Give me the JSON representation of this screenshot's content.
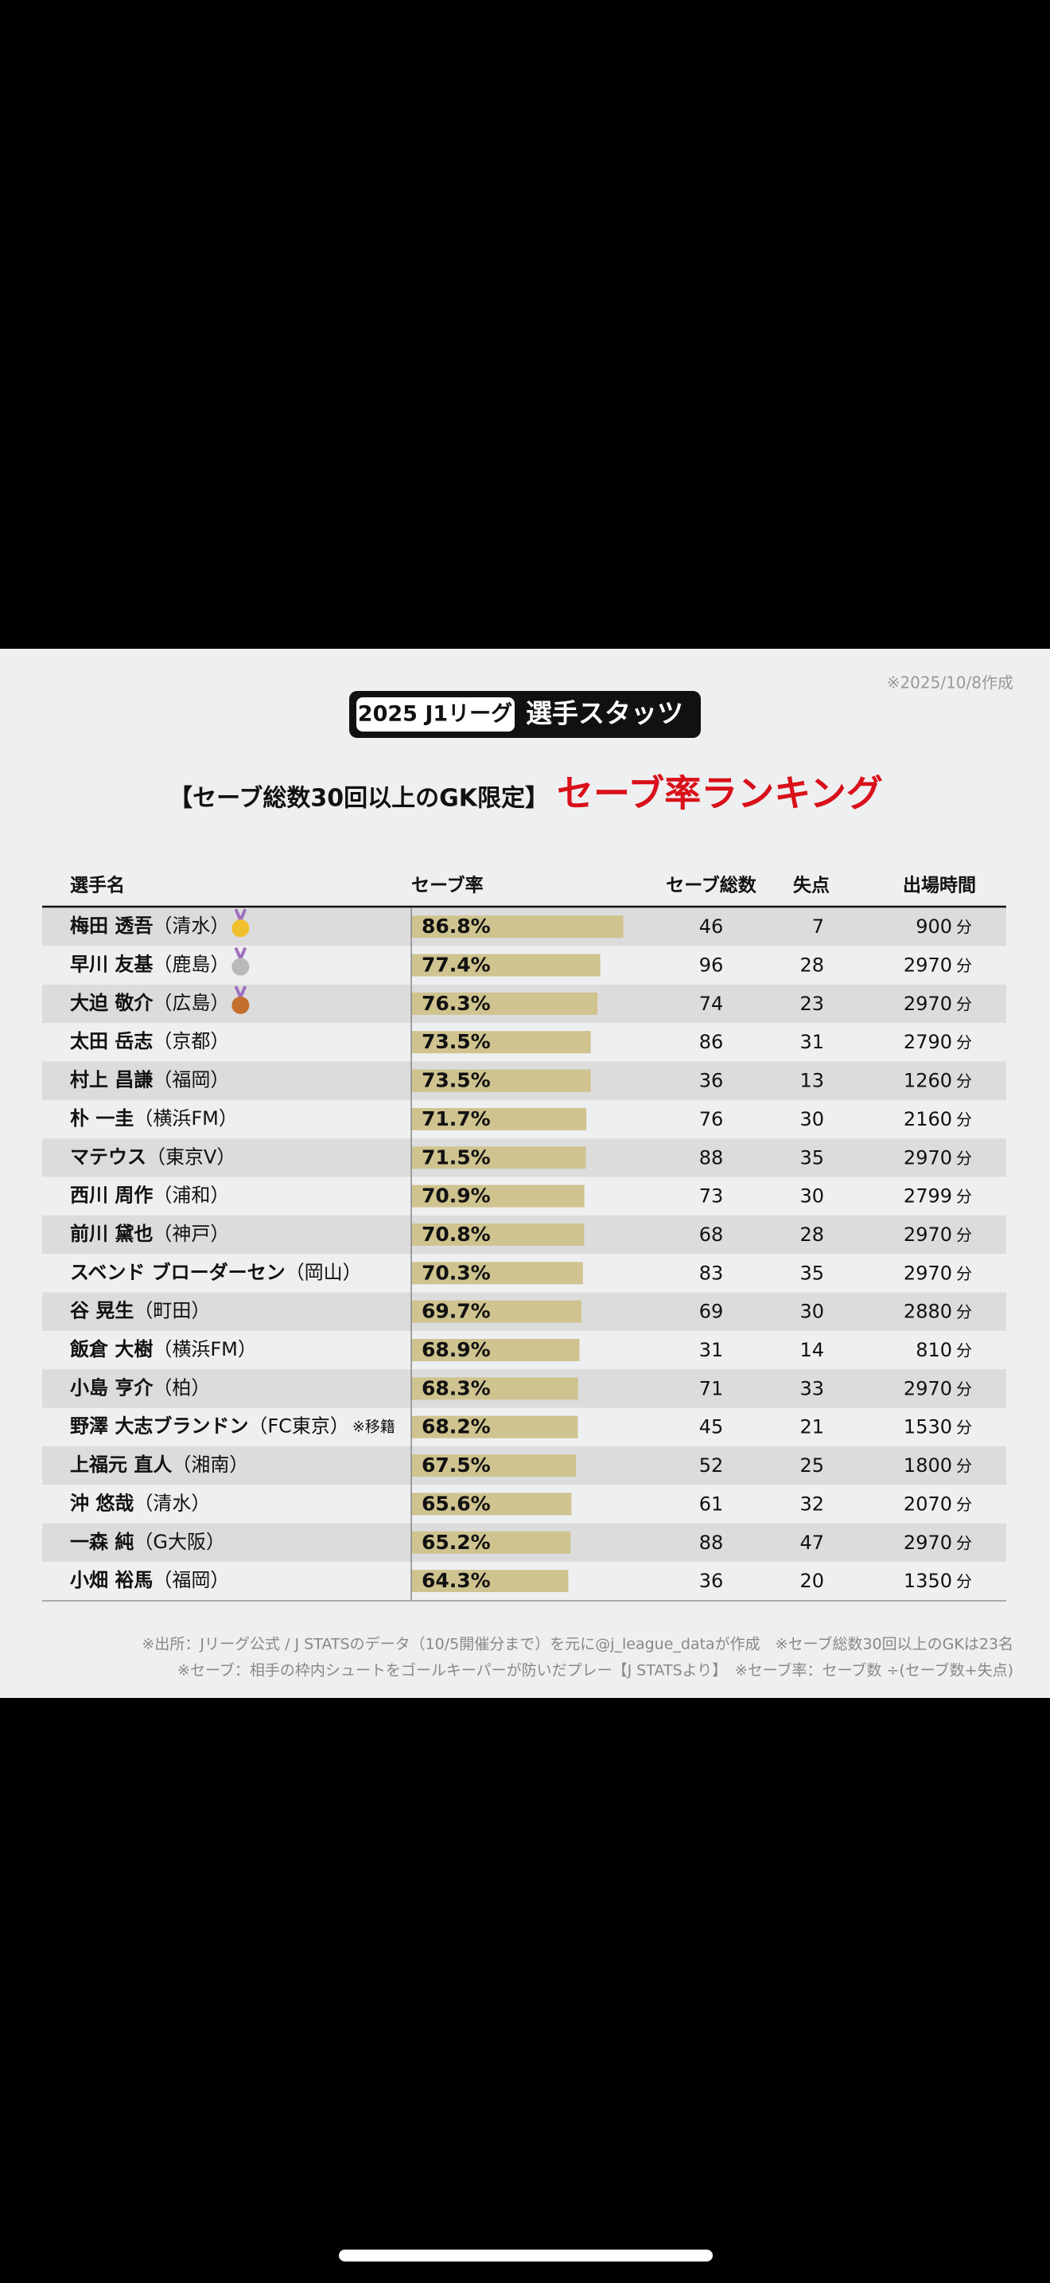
{
  "header": {
    "date_note": "※2025/10/8作成",
    "badge": "2025 J1リーグ",
    "badge_title": "選手スタッツ",
    "subtitle": "【セーブ総数30回以上のGK限定】",
    "title": "セーブ率ランキング"
  },
  "table": {
    "columns": [
      "選手名",
      "セーブ率",
      "セーブ総数",
      "失点",
      "出場時間"
    ],
    "minutes_unit": "分",
    "rows": [
      {
        "name": "梅田 透吾",
        "team": "（清水）",
        "rate": 86.8,
        "rate_label": "86.8%",
        "saves": 46,
        "goals": 7,
        "minutes": 900
      },
      {
        "name": "早川 友基",
        "team": "（鹿島）",
        "rate": 77.4,
        "rate_label": "77.4%",
        "saves": 96,
        "goals": 28,
        "minutes": 2970
      },
      {
        "name": "大迫 敬介",
        "team": "（広島）",
        "rate": 76.3,
        "rate_label": "76.3%",
        "saves": 74,
        "goals": 23,
        "minutes": 2970
      },
      {
        "name": "太田 岳志",
        "team": "（京都）",
        "rate": 73.5,
        "rate_label": "73.5%",
        "saves": 86,
        "goals": 31,
        "minutes": 2790
      },
      {
        "name": "村上 昌謙",
        "team": "（福岡）",
        "rate": 73.5,
        "rate_label": "73.5%",
        "saves": 36,
        "goals": 13,
        "minutes": 1260
      },
      {
        "name": "朴 一圭",
        "team": "（横浜FM）",
        "rate": 71.7,
        "rate_label": "71.7%",
        "saves": 76,
        "goals": 30,
        "minutes": 2160
      },
      {
        "name": "マテウス",
        "team": "（東京V）",
        "rate": 71.5,
        "rate_label": "71.5%",
        "saves": 88,
        "goals": 35,
        "minutes": 2970
      },
      {
        "name": "西川 周作",
        "team": "（浦和）",
        "rate": 70.9,
        "rate_label": "70.9%",
        "saves": 73,
        "goals": 30,
        "minutes": 2799
      },
      {
        "name": "前川 黛也",
        "team": "（神戸）",
        "rate": 70.8,
        "rate_label": "70.8%",
        "saves": 68,
        "goals": 28,
        "minutes": 2970
      },
      {
        "name": "スベンド ブローダーセン",
        "team": "（岡山）",
        "rate": 70.3,
        "rate_label": "70.3%",
        "saves": 83,
        "goals": 35,
        "minutes": 2970
      },
      {
        "name": "谷 晃生",
        "team": "（町田）",
        "rate": 69.7,
        "rate_label": "69.7%",
        "saves": 69,
        "goals": 30,
        "minutes": 2880
      },
      {
        "name": "飯倉 大樹",
        "team": "（横浜FM）",
        "rate": 68.9,
        "rate_label": "68.9%",
        "saves": 31,
        "goals": 14,
        "minutes": 810
      },
      {
        "name": "小島 亨介",
        "team": "（柏）",
        "rate": 68.3,
        "rate_label": "68.3%",
        "saves": 71,
        "goals": 33,
        "minutes": 2970
      },
      {
        "name": "野澤 大志ブランドン",
        "team": "（FC東京）",
        "note": "※移籍",
        "rate": 68.2,
        "rate_label": "68.2%",
        "saves": 45,
        "goals": 21,
        "minutes": 1530
      },
      {
        "name": "上福元 直人",
        "team": "（湘南）",
        "rate": 67.5,
        "rate_label": "67.5%",
        "saves": 52,
        "goals": 25,
        "minutes": 1800
      },
      {
        "name": "沖 悠哉",
        "team": "（清水）",
        "rate": 65.6,
        "rate_label": "65.6%",
        "saves": 61,
        "goals": 32,
        "minutes": 2070
      },
      {
        "name": "一森 純",
        "team": "（G大阪）",
        "rate": 65.2,
        "rate_label": "65.2%",
        "saves": 88,
        "goals": 47,
        "minutes": 2970
      },
      {
        "name": "小畑 裕馬",
        "team": "（福岡）",
        "rate": 64.3,
        "rate_label": "64.3%",
        "saves": 36,
        "goals": 20,
        "minutes": 1350
      }
    ]
  },
  "footer": {
    "notes": [
      "※出所：Jリーグ公式 / J STATSのデータ（10/5開催分まで）を元に@j_league_dataが作成　※セーブ総数30回以上のGKは23名",
      "※セーブ：相手の枠内シュートをゴールキーパーが防いだプレー【J STATSより】　※セーブ率：セーブ数 ÷(セーブ数+失点)"
    ]
  }
}
